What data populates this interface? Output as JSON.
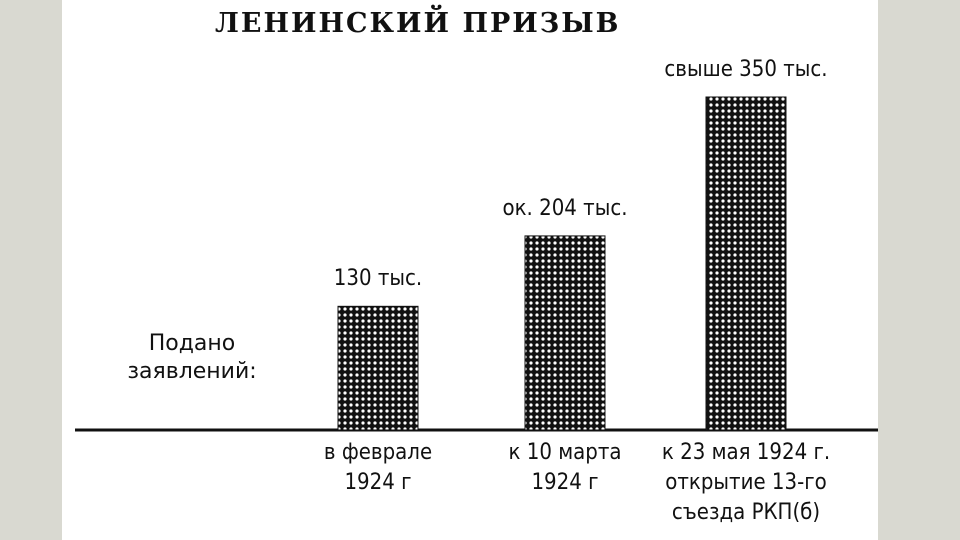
{
  "chart_data": {
    "type": "bar",
    "title": "ЛЕНИНСКИЙ ПРИЗЫВ",
    "y_label": "Подано\nзаявлений:",
    "categories": [
      "в феврале\n1924 г",
      "к 10 марта\n1924 г",
      "к 23 мая 1924 г.\nоткрытие 13-го\nсъезда РКП(б)"
    ],
    "values": [
      130,
      204,
      350
    ],
    "value_labels": [
      "130 тыс.",
      "ок. 204 тыс.",
      "свыше 350 тыс."
    ],
    "color": "#111111"
  }
}
